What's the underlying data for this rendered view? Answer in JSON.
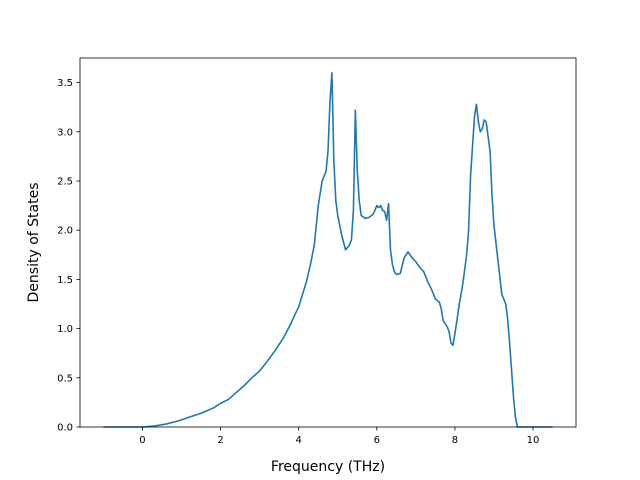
{
  "chart_data": {
    "type": "line",
    "title": "",
    "xlabel": "Frequency (THz)",
    "ylabel": "Density of States",
    "xlim": [
      -1.6,
      11.1
    ],
    "ylim": [
      0,
      3.75
    ],
    "xticks": [
      0,
      2,
      4,
      6,
      8,
      10
    ],
    "yticks": [
      0.0,
      0.5,
      1.0,
      1.5,
      2.0,
      2.5,
      3.0,
      3.5
    ],
    "xtick_labels": [
      "0",
      "2",
      "4",
      "6",
      "8",
      "10"
    ],
    "ytick_labels": [
      "0.0",
      "0.5",
      "1.0",
      "1.5",
      "2.0",
      "2.5",
      "3.0",
      "3.5"
    ],
    "grid": false,
    "series": [
      {
        "color": "#1f77b4",
        "x": [
          -1.0,
          -0.5,
          0.0,
          0.3,
          0.6,
          0.9,
          1.2,
          1.5,
          1.8,
          2.0,
          2.2,
          2.4,
          2.6,
          2.8,
          3.0,
          3.2,
          3.4,
          3.6,
          3.8,
          3.9,
          4.0,
          4.1,
          4.2,
          4.3,
          4.4,
          4.5,
          4.6,
          4.65,
          4.7,
          4.75,
          4.8,
          4.85,
          4.9,
          4.95,
          5.0,
          5.1,
          5.2,
          5.3,
          5.35,
          5.4,
          5.45,
          5.5,
          5.55,
          5.6,
          5.7,
          5.8,
          5.9,
          5.95,
          6.0,
          6.05,
          6.1,
          6.15,
          6.2,
          6.25,
          6.3,
          6.35,
          6.4,
          6.45,
          6.5,
          6.6,
          6.7,
          6.8,
          6.85,
          6.9,
          7.0,
          7.1,
          7.2,
          7.3,
          7.4,
          7.5,
          7.6,
          7.65,
          7.7,
          7.8,
          7.85,
          7.9,
          7.95,
          8.0,
          8.05,
          8.1,
          8.2,
          8.3,
          8.35,
          8.4,
          8.5,
          8.55,
          8.6,
          8.65,
          8.7,
          8.75,
          8.8,
          8.85,
          8.9,
          8.95,
          9.0,
          9.1,
          9.2,
          9.3,
          9.35,
          9.4,
          9.45,
          9.5,
          9.55,
          9.6,
          9.7,
          9.8,
          10.0,
          10.2,
          10.5
        ],
        "y": [
          0.0,
          0.0,
          0.0,
          0.01,
          0.03,
          0.06,
          0.1,
          0.14,
          0.19,
          0.24,
          0.28,
          0.35,
          0.42,
          0.5,
          0.57,
          0.67,
          0.78,
          0.9,
          1.05,
          1.14,
          1.22,
          1.35,
          1.48,
          1.65,
          1.85,
          2.25,
          2.5,
          2.55,
          2.6,
          2.8,
          3.3,
          3.6,
          2.7,
          2.3,
          2.15,
          1.95,
          1.8,
          1.85,
          1.9,
          2.2,
          3.22,
          2.6,
          2.3,
          2.15,
          2.12,
          2.13,
          2.16,
          2.2,
          2.25,
          2.23,
          2.25,
          2.2,
          2.19,
          2.1,
          2.27,
          1.8,
          1.65,
          1.58,
          1.55,
          1.56,
          1.72,
          1.78,
          1.75,
          1.72,
          1.68,
          1.62,
          1.58,
          1.48,
          1.4,
          1.3,
          1.27,
          1.2,
          1.08,
          1.02,
          0.97,
          0.85,
          0.83,
          0.95,
          1.08,
          1.22,
          1.45,
          1.75,
          2.0,
          2.55,
          3.15,
          3.28,
          3.1,
          3.0,
          3.03,
          3.12,
          3.1,
          2.95,
          2.8,
          2.35,
          2.05,
          1.7,
          1.35,
          1.25,
          1.1,
          0.85,
          0.58,
          0.3,
          0.1,
          0.0,
          0.0,
          0.0,
          0.0,
          0.0,
          0.0
        ]
      }
    ]
  }
}
